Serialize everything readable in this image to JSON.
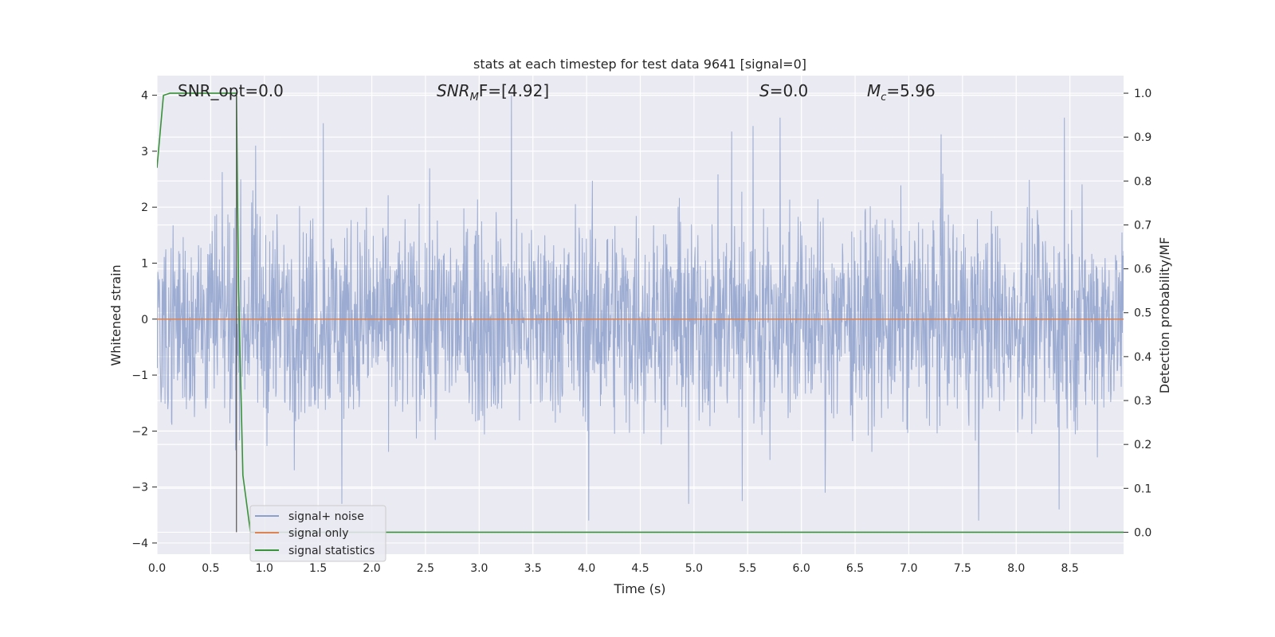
{
  "chart_data": {
    "type": "line",
    "title": "stats at each timestep for test data 9641 [signal=0]",
    "xlabel": "Time (s)",
    "ylabel": "Whitened strain",
    "y2label": "Detection probability/MF",
    "xlim": [
      0.0,
      9.0
    ],
    "ylim": [
      -4.2,
      4.35
    ],
    "y2lim": [
      -0.05,
      1.04
    ],
    "xticks": [
      "0.0",
      "0.5",
      "1.0",
      "1.5",
      "2.0",
      "2.5",
      "3.0",
      "3.5",
      "4.0",
      "4.5",
      "5.0",
      "5.5",
      "6.0",
      "6.5",
      "7.0",
      "7.5",
      "8.0",
      "8.5"
    ],
    "yticks": [
      "−4",
      "−3",
      "−2",
      "−1",
      "0",
      "1",
      "2",
      "3",
      "4"
    ],
    "y2ticks": [
      "0.0",
      "0.1",
      "0.2",
      "0.3",
      "0.4",
      "0.5",
      "0.6",
      "0.7",
      "0.8",
      "0.9",
      "1.0"
    ],
    "grid": true,
    "legend_position": "lower-left",
    "annotations": {
      "snr_opt": "SNR_opt=0.0",
      "snr_mf": "SNR",
      "snr_mf_sub": "M",
      "snr_mf_tail": "F=[4.92]",
      "s": "S",
      "s_tail": "=0.0",
      "mc": "M",
      "mc_sub": "c",
      "mc_tail": "=5.96"
    },
    "vertical_line_x": 0.74,
    "series": [
      {
        "name": "signal+ noise",
        "color": "#8da0cb",
        "axis": "left",
        "style": "noise",
        "approx_std": 0.9,
        "spikes": [
          {
            "x": 1.55,
            "y": 3.5
          },
          {
            "x": 3.3,
            "y": 4.0
          },
          {
            "x": 5.35,
            "y": 3.35
          },
          {
            "x": 5.55,
            "y": 3.45
          },
          {
            "x": 5.8,
            "y": 3.6
          },
          {
            "x": 0.92,
            "y": 3.1
          },
          {
            "x": 8.45,
            "y": 3.6
          },
          {
            "x": 7.3,
            "y": 3.3
          },
          {
            "x": 1.72,
            "y": -3.3
          },
          {
            "x": 4.02,
            "y": -3.6
          },
          {
            "x": 4.95,
            "y": -3.3
          },
          {
            "x": 5.45,
            "y": -3.25
          },
          {
            "x": 7.65,
            "y": -3.6
          },
          {
            "x": 8.4,
            "y": -3.4
          },
          {
            "x": 6.22,
            "y": -3.1
          }
        ]
      },
      {
        "name": "signal only",
        "color": "#dd8452",
        "axis": "left",
        "x": [
          0.0,
          9.0
        ],
        "y": [
          0.0,
          0.0
        ]
      },
      {
        "name": "signal statistics",
        "color": "#3a923a",
        "axis": "right",
        "x": [
          0.0,
          0.06,
          0.12,
          0.25,
          0.5,
          0.74,
          0.76,
          0.8,
          0.87,
          1.0,
          4.0,
          9.0
        ],
        "y": [
          0.83,
          0.995,
          1.0,
          1.0,
          1.0,
          1.0,
          0.55,
          0.13,
          0.0,
          0.0,
          0.0,
          0.0
        ]
      }
    ]
  }
}
